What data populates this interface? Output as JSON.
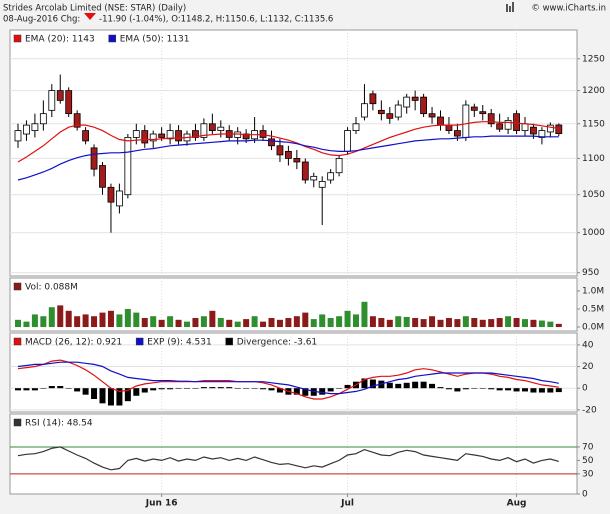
{
  "header": {
    "title": "Strides Arcolab Limited (NSE: STAR) (Daily)",
    "date_chg": "08-Aug-2016 Chg:",
    "quote": "-11.90 (-1.04%), O:1148.2, H:1150.6, L:1132, C:1135.6",
    "credit": "© www.iCharts.in"
  },
  "chart_data": [
    {
      "type": "candlestick",
      "open": [
        1125,
        1135,
        1140,
        1150,
        1170,
        1200,
        1200,
        1165,
        1140,
        1115,
        1090,
        1060,
        1035,
        1050,
        1130,
        1140,
        1125,
        1135,
        1128,
        1140,
        1125,
        1140,
        1130,
        1150,
        1140,
        1140,
        1130,
        1135,
        1128,
        1140,
        1128,
        1118,
        1110,
        1100,
        1095,
        1070,
        1060,
        1070,
        1080,
        1110,
        1140,
        1160,
        1195,
        1170,
        1165,
        1160,
        1175,
        1190,
        1190,
        1165,
        1160,
        1148,
        1140,
        1130,
        1175,
        1168,
        1165,
        1150,
        1142,
        1165,
        1140,
        1145,
        1130,
        1138,
        1148.2
      ],
      "high": [
        1150,
        1155,
        1165,
        1185,
        1210,
        1225,
        1205,
        1170,
        1145,
        1120,
        1095,
        1065,
        1065,
        1135,
        1150,
        1148,
        1140,
        1145,
        1150,
        1148,
        1140,
        1150,
        1158,
        1165,
        1155,
        1148,
        1145,
        1142,
        1160,
        1148,
        1140,
        1128,
        1118,
        1112,
        1100,
        1080,
        1075,
        1085,
        1105,
        1145,
        1160,
        1210,
        1200,
        1185,
        1175,
        1185,
        1195,
        1200,
        1195,
        1175,
        1170,
        1160,
        1150,
        1185,
        1180,
        1178,
        1172,
        1165,
        1160,
        1170,
        1160,
        1150,
        1145,
        1152,
        1150.6
      ],
      "low": [
        1115,
        1125,
        1130,
        1140,
        1160,
        1180,
        1160,
        1140,
        1120,
        1075,
        1050,
        1000,
        1025,
        1045,
        1120,
        1115,
        1115,
        1125,
        1120,
        1120,
        1118,
        1125,
        1125,
        1135,
        1130,
        1125,
        1120,
        1122,
        1122,
        1125,
        1112,
        1095,
        1090,
        1085,
        1065,
        1060,
        1010,
        1065,
        1075,
        1105,
        1135,
        1155,
        1170,
        1155,
        1150,
        1155,
        1165,
        1170,
        1160,
        1150,
        1140,
        1135,
        1125,
        1125,
        1160,
        1155,
        1145,
        1138,
        1135,
        1135,
        1132,
        1128,
        1120,
        1130,
        1132
      ],
      "close": [
        1140,
        1148,
        1150,
        1165,
        1200,
        1185,
        1165,
        1145,
        1125,
        1085,
        1060,
        1040,
        1055,
        1130,
        1140,
        1122,
        1135,
        1130,
        1140,
        1125,
        1135,
        1130,
        1150,
        1140,
        1145,
        1130,
        1138,
        1128,
        1140,
        1130,
        1118,
        1105,
        1100,
        1095,
        1070,
        1075,
        1068,
        1080,
        1100,
        1140,
        1150,
        1180,
        1180,
        1165,
        1158,
        1178,
        1190,
        1185,
        1165,
        1160,
        1148,
        1140,
        1132,
        1178,
        1170,
        1165,
        1150,
        1142,
        1155,
        1140,
        1150,
        1135,
        1140,
        1148,
        1135.6
      ],
      "up_color": "#ffffff",
      "down_color": "#a31c1c",
      "series": [
        {
          "name": "EMA (20): 1143",
          "color": "#e01010",
          "values": [
            1095,
            1102,
            1110,
            1118,
            1128,
            1138,
            1145,
            1148,
            1148,
            1145,
            1140,
            1133,
            1127,
            1125,
            1126,
            1127,
            1127,
            1128,
            1129,
            1129,
            1130,
            1131,
            1133,
            1134,
            1135,
            1135,
            1135,
            1134,
            1134,
            1134,
            1132,
            1129,
            1126,
            1122,
            1117,
            1113,
            1108,
            1105,
            1104,
            1106,
            1110,
            1115,
            1120,
            1125,
            1130,
            1134,
            1138,
            1142,
            1145,
            1147,
            1148,
            1148,
            1148,
            1150,
            1152,
            1153,
            1153,
            1152,
            1152,
            1151,
            1150,
            1149,
            1147,
            1145,
            1143
          ]
        },
        {
          "name": "EMA (50): 1131",
          "color": "#1010cc",
          "values": [
            1070,
            1073,
            1077,
            1081,
            1086,
            1092,
            1097,
            1101,
            1104,
            1106,
            1107,
            1108,
            1108,
            1109,
            1111,
            1113,
            1114,
            1116,
            1118,
            1119,
            1120,
            1121,
            1122,
            1123,
            1124,
            1125,
            1125,
            1125,
            1126,
            1126,
            1125,
            1124,
            1123,
            1121,
            1118,
            1116,
            1113,
            1111,
            1110,
            1110,
            1111,
            1113,
            1115,
            1117,
            1119,
            1121,
            1123,
            1125,
            1126,
            1127,
            1128,
            1128,
            1129,
            1130,
            1131,
            1131,
            1132,
            1132,
            1132,
            1132,
            1132,
            1132,
            1131,
            1131,
            1131
          ]
        }
      ],
      "log_scale": true,
      "ylim": [
        946,
        1297
      ],
      "yticks": [
        950,
        1000,
        1050,
        1100,
        1150,
        1200,
        1250
      ],
      "grid": true
    },
    {
      "type": "bar",
      "series": [
        {
          "name": "Vol: 0.088M",
          "color": "#8b1a1a",
          "values": [
            0.2,
            0.15,
            0.35,
            0.3,
            0.55,
            0.6,
            0.45,
            0.3,
            0.35,
            0.3,
            0.4,
            0.45,
            0.35,
            0.5,
            0.4,
            0.25,
            0.3,
            0.2,
            0.3,
            0.2,
            0.15,
            0.25,
            0.3,
            0.45,
            0.25,
            0.2,
            0.15,
            0.22,
            0.3,
            0.15,
            0.25,
            0.2,
            0.25,
            0.3,
            0.4,
            0.22,
            0.35,
            0.25,
            0.3,
            0.45,
            0.35,
            0.7,
            0.3,
            0.25,
            0.2,
            0.3,
            0.28,
            0.25,
            0.22,
            0.3,
            0.2,
            0.25,
            0.22,
            0.3,
            0.25,
            0.2,
            0.22,
            0.25,
            0.3,
            0.25,
            0.22,
            0.2,
            0.18,
            0.15,
            0.088
          ]
        }
      ],
      "up_color": "#2f8f2f",
      "down_color": "#8b1a1a",
      "ylim": [
        -0.11,
        1.36
      ],
      "yticks": [
        {
          "value": 1,
          "label": "1.0M"
        },
        {
          "value": 0.5,
          "label": "0.5M"
        },
        {
          "value": 0,
          "label": "0.0M"
        }
      ],
      "grid": false
    },
    {
      "type": "macd",
      "series": [
        {
          "name": "MACD (26, 12): 0.921",
          "color": "#e01010",
          "style": "line",
          "values": [
            18,
            19,
            20,
            22,
            25,
            26,
            24,
            21,
            17,
            12,
            6,
            0,
            -3,
            -2,
            2,
            4,
            5,
            6,
            6,
            6,
            6,
            6,
            7,
            7,
            7,
            7,
            6,
            6,
            6,
            5,
            3,
            0,
            -3,
            -5,
            -8,
            -10,
            -10,
            -8,
            -5,
            -1,
            3,
            8,
            10,
            11,
            11,
            12,
            14,
            17,
            18,
            17,
            15,
            13,
            11,
            13,
            14,
            14,
            13,
            11,
            10,
            8,
            7,
            5,
            3,
            2,
            0.921
          ]
        },
        {
          "name": "EXP (9): 4.531",
          "color": "#1010cc",
          "style": "line",
          "values": [
            20,
            21,
            22,
            22,
            23,
            24,
            24,
            24,
            23,
            22,
            20,
            16,
            13,
            10,
            9,
            8,
            7,
            7,
            7,
            6.5,
            6.5,
            6,
            6,
            6,
            6,
            6,
            6,
            6,
            6,
            6,
            5,
            4,
            3,
            1,
            -1,
            -3,
            -4,
            -5,
            -5,
            -4,
            -3,
            -1,
            2,
            4,
            6,
            8,
            9,
            11,
            12,
            13,
            14,
            14,
            14,
            14,
            14,
            14,
            14,
            13,
            12,
            11,
            10,
            9,
            7,
            6,
            4.531
          ]
        },
        {
          "name": "Divergence: -3.61",
          "color": "#000000",
          "style": "bar",
          "values": [
            -2,
            -2,
            -2,
            0,
            2,
            2,
            0,
            -3,
            -6,
            -10,
            -14,
            -16,
            -16,
            -12,
            -7,
            -4,
            -2,
            -1,
            -1,
            -0.5,
            -0.5,
            0,
            1,
            1,
            1,
            1,
            0,
            0,
            0,
            -1,
            -2,
            -4,
            -6,
            -6,
            -7,
            -7,
            -6,
            -3,
            0,
            3,
            6,
            9,
            8,
            7,
            5,
            4,
            5,
            6,
            6,
            4,
            1,
            -1,
            -3,
            -1,
            0,
            0,
            -1,
            -2,
            -2,
            -3,
            -3,
            -4,
            -4,
            -4,
            -3.61
          ]
        }
      ],
      "ylim": [
        -22,
        51
      ],
      "yticks": [
        40,
        20,
        0,
        -20
      ],
      "grid": true
    },
    {
      "type": "line",
      "series": [
        {
          "name": "RSI (14): 48.54",
          "color": "#333333",
          "values": [
            57,
            59,
            60,
            63,
            68,
            70,
            64,
            58,
            53,
            46,
            40,
            36,
            38,
            50,
            53,
            49,
            52,
            50,
            54,
            49,
            52,
            50,
            55,
            52,
            54,
            50,
            53,
            50,
            55,
            51,
            47,
            44,
            45,
            42,
            39,
            42,
            40,
            45,
            50,
            58,
            60,
            66,
            62,
            58,
            57,
            62,
            65,
            63,
            58,
            56,
            54,
            52,
            50,
            60,
            58,
            56,
            52,
            50,
            54,
            48,
            52,
            46,
            50,
            52,
            48.54
          ]
        }
      ],
      "reference_lines": [
        {
          "value": 70,
          "color": "#3a8a3a"
        },
        {
          "value": 30,
          "color": "#c02020"
        }
      ],
      "ylim": [
        0,
        119
      ],
      "yticks": [
        70,
        50,
        30,
        0
      ],
      "grid": false,
      "categories": [
        null,
        null,
        null,
        null,
        null,
        null,
        null,
        null,
        null,
        null,
        null,
        null,
        null,
        null,
        null,
        null,
        null,
        "Jun 16",
        null,
        null,
        null,
        null,
        null,
        null,
        null,
        null,
        null,
        null,
        null,
        null,
        null,
        null,
        null,
        null,
        null,
        null,
        null,
        null,
        null,
        "Jul",
        null,
        null,
        null,
        null,
        null,
        null,
        null,
        null,
        null,
        null,
        null,
        null,
        null,
        null,
        null,
        null,
        null,
        null,
        null,
        "Aug",
        null,
        null,
        null,
        null,
        null
      ]
    }
  ]
}
